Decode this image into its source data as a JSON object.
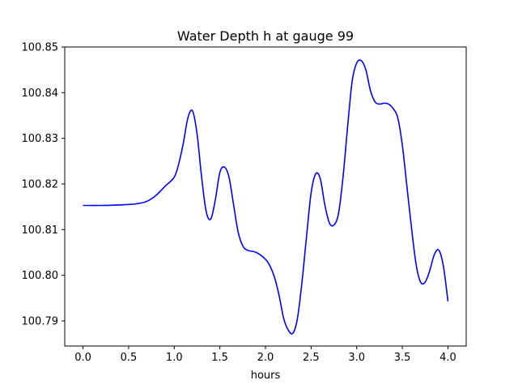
{
  "chart_data": {
    "type": "line",
    "title": "Water Depth h at gauge 99",
    "xlabel": "hours",
    "ylabel": "",
    "xlim": [
      -0.2,
      4.2
    ],
    "ylim": [
      100.7845,
      100.85
    ],
    "grid": false,
    "legend": "none",
    "x_ticks": [
      0.0,
      0.5,
      1.0,
      1.5,
      2.0,
      2.5,
      3.0,
      3.5,
      4.0
    ],
    "x_tick_labels": [
      "0.0",
      "0.5",
      "1.0",
      "1.5",
      "2.0",
      "2.5",
      "3.0",
      "3.5",
      "4.0"
    ],
    "y_ticks": [
      100.79,
      100.8,
      100.81,
      100.82,
      100.83,
      100.84,
      100.85
    ],
    "y_tick_labels": [
      "100.79",
      "100.80",
      "100.81",
      "100.82",
      "100.83",
      "100.84",
      "100.85"
    ],
    "series": [
      {
        "name": "",
        "color": "#0000ff",
        "x": [
          0.0,
          0.2,
          0.4,
          0.5,
          0.6,
          0.7,
          0.8,
          0.9,
          1.0,
          1.05,
          1.1,
          1.15,
          1.2,
          1.25,
          1.3,
          1.35,
          1.4,
          1.45,
          1.5,
          1.55,
          1.6,
          1.65,
          1.7,
          1.75,
          1.8,
          1.9,
          2.0,
          2.05,
          2.1,
          2.15,
          2.2,
          2.25,
          2.3,
          2.35,
          2.4,
          2.45,
          2.5,
          2.55,
          2.6,
          2.65,
          2.7,
          2.75,
          2.8,
          2.85,
          2.9,
          2.95,
          3.0,
          3.05,
          3.1,
          3.15,
          3.2,
          3.25,
          3.3,
          3.35,
          3.4,
          3.45,
          3.5,
          3.55,
          3.6,
          3.65,
          3.7,
          3.75,
          3.8,
          3.85,
          3.9,
          3.95,
          4.0
        ],
        "values": [
          100.8153,
          100.8153,
          100.8154,
          100.8155,
          100.8157,
          100.8162,
          100.8175,
          100.8195,
          100.8215,
          100.8245,
          100.829,
          100.8345,
          100.836,
          100.831,
          100.8215,
          100.814,
          100.8123,
          100.8165,
          100.8225,
          100.8237,
          100.8215,
          100.8155,
          100.8095,
          100.8065,
          100.8055,
          100.805,
          100.8035,
          100.802,
          100.7995,
          100.7955,
          100.7905,
          100.788,
          100.7873,
          100.7905,
          100.7985,
          100.8085,
          100.818,
          100.8222,
          100.8212,
          100.8155,
          100.8115,
          100.811,
          100.8135,
          100.8215,
          100.8325,
          100.8425,
          100.8465,
          100.847,
          100.845,
          100.8405,
          100.838,
          100.8375,
          100.8377,
          100.8375,
          100.8365,
          100.8345,
          100.8285,
          100.8195,
          100.8105,
          100.8025,
          100.7985,
          100.7985,
          100.801,
          100.8045,
          100.8055,
          100.802,
          100.7943
        ]
      }
    ]
  }
}
